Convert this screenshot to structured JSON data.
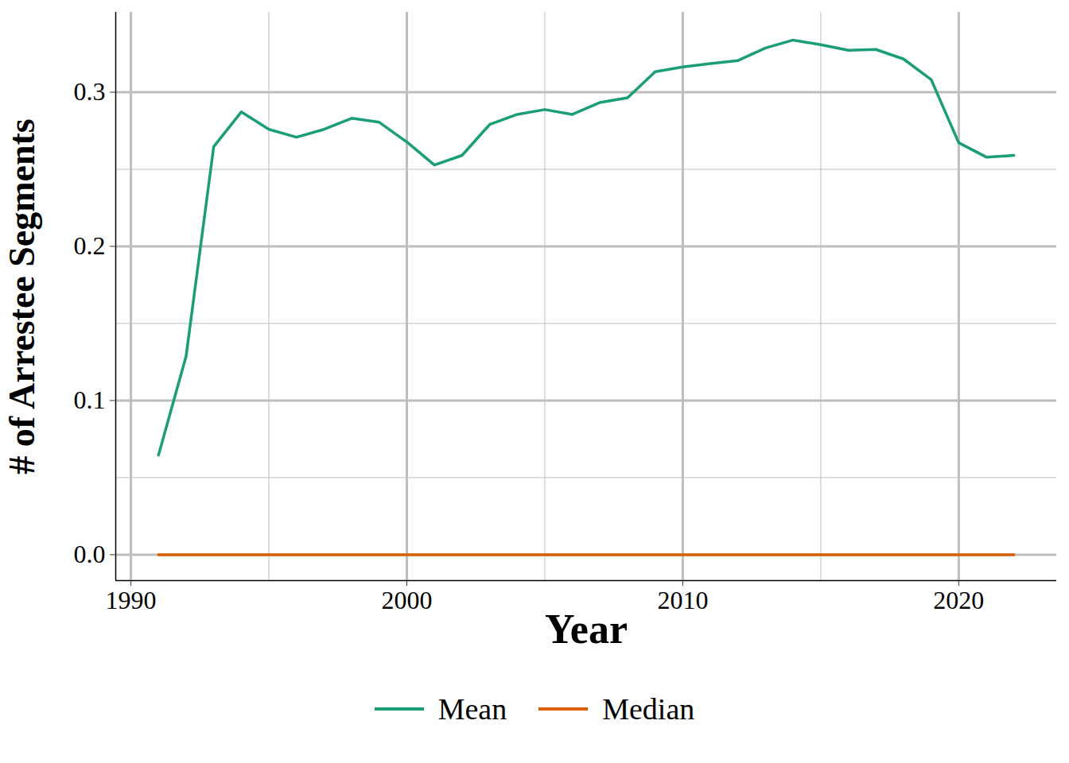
{
  "chart_data": {
    "type": "line",
    "x": [
      1991,
      1992,
      1993,
      1994,
      1995,
      1996,
      1997,
      1998,
      1999,
      2000,
      2001,
      2002,
      2003,
      2004,
      2005,
      2006,
      2007,
      2008,
      2009,
      2010,
      2011,
      2012,
      2013,
      2014,
      2015,
      2016,
      2017,
      2018,
      2019,
      2020,
      2021,
      2022
    ],
    "series": [
      {
        "name": "Mean",
        "color": "#1b9e77",
        "values": [
          0.0646,
          0.1287,
          0.2646,
          0.2872,
          0.2759,
          0.2708,
          0.2759,
          0.2831,
          0.2805,
          0.2677,
          0.2528,
          0.259,
          0.279,
          0.2856,
          0.2887,
          0.2856,
          0.2933,
          0.2964,
          0.3133,
          0.3164,
          0.3185,
          0.3205,
          0.3287,
          0.3338,
          0.3308,
          0.3272,
          0.3277,
          0.3215,
          0.3082,
          0.2672,
          0.2579,
          0.259
        ]
      },
      {
        "name": "Median",
        "color": "#d95f02",
        "values": [
          0,
          0,
          0,
          0,
          0,
          0,
          0,
          0,
          0,
          0,
          0,
          0,
          0,
          0,
          0,
          0,
          0,
          0,
          0,
          0,
          0,
          0,
          0,
          0,
          0,
          0,
          0,
          0,
          0,
          0,
          0,
          0
        ]
      }
    ],
    "xlabel": "Year",
    "ylabel": "# of Arrestee Segments",
    "xlim": [
      1989.45,
      2023.55
    ],
    "ylim": [
      -0.0168,
      0.3518
    ],
    "xticks": [
      1990,
      2000,
      2010,
      2020
    ],
    "yticks": [
      {
        "value": 0,
        "label": "0.0"
      },
      {
        "value": 0.1,
        "label": "0.1"
      },
      {
        "value": 0.2,
        "label": "0.2"
      },
      {
        "value": 0.3,
        "label": "0.3"
      }
    ],
    "grid": true,
    "legend": "bottom"
  }
}
